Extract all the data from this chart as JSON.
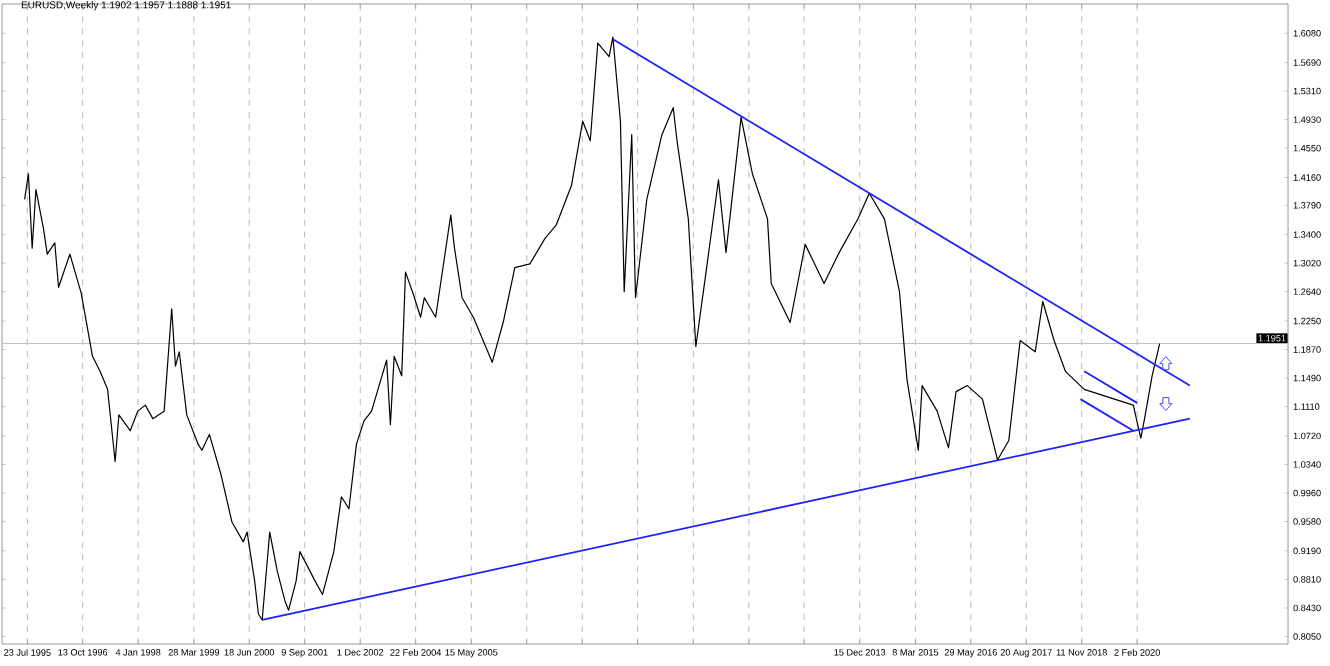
{
  "chart_data": {
    "type": "line",
    "title": "EURUSD,Weekly  1.1902 1.1957 1.1888 1.1951",
    "xlim": [
      "1995-01",
      "2023-06"
    ],
    "ylim": [
      0.795,
      1.647
    ],
    "xticks": [
      {
        "value": "1995-07-23",
        "label": "23 Jul 1995"
      },
      {
        "value": "1996-10-13",
        "label": "13 Oct 1996"
      },
      {
        "value": "1998-01-04",
        "label": "4 Jan 1998"
      },
      {
        "value": "1999-03-28",
        "label": "28 Mar 1999"
      },
      {
        "value": "2000-06-18",
        "label": "18 Jun 2000"
      },
      {
        "value": "2001-09-09",
        "label": "9 Sep 2001"
      },
      {
        "value": "2002-12-01",
        "label": "1 Dec 2002"
      },
      {
        "value": "2004-02-22",
        "label": "22 Feb 2004"
      },
      {
        "value": "2005-05-15",
        "label": "15 May 2005"
      },
      {
        "value": "2006-08-06",
        "label": null
      },
      {
        "value": "2007-10-28",
        "label": null
      },
      {
        "value": "2009-01-18",
        "label": null
      },
      {
        "value": "2010-04-11",
        "label": null
      },
      {
        "value": "2011-07-03",
        "label": null
      },
      {
        "value": "2012-09-23",
        "label": null
      },
      {
        "value": "2013-12-15",
        "label": "15 Dec 2013"
      },
      {
        "value": "2015-03-08",
        "label": "8 Mar 2015"
      },
      {
        "value": "2016-05-29",
        "label": "29 May 2016"
      },
      {
        "value": "2017-08-20",
        "label": "20 Aug 2017"
      },
      {
        "value": "2018-11-11",
        "label": "11 Nov 2018"
      },
      {
        "value": "2020-02-02",
        "label": "2 Feb 2020"
      }
    ],
    "yticks": [
      {
        "value": 1.608,
        "label": "1.6080"
      },
      {
        "value": 1.569,
        "label": "1.5690"
      },
      {
        "value": 1.531,
        "label": "1.5310"
      },
      {
        "value": 1.493,
        "label": "1.4930"
      },
      {
        "value": 1.455,
        "label": "1.4550"
      },
      {
        "value": 1.416,
        "label": "1.4160"
      },
      {
        "value": 1.379,
        "label": "1.3790"
      },
      {
        "value": 1.34,
        "label": "1.3400"
      },
      {
        "value": 1.302,
        "label": "1.3020"
      },
      {
        "value": 1.264,
        "label": "1.2640"
      },
      {
        "value": 1.225,
        "label": "1.2250"
      },
      {
        "value": 1.187,
        "label": "1.1870"
      },
      {
        "value": 1.149,
        "label": "1.1490"
      },
      {
        "value": 1.111,
        "label": "1.1110"
      },
      {
        "value": 1.072,
        "label": "1.0720"
      },
      {
        "value": 1.034,
        "label": "1.0340"
      },
      {
        "value": 0.996,
        "label": "0.9960"
      },
      {
        "value": 0.958,
        "label": "0.9580"
      },
      {
        "value": 0.919,
        "label": "0.9190"
      },
      {
        "value": 0.881,
        "label": "0.8810"
      },
      {
        "value": 0.843,
        "label": "0.8430"
      },
      {
        "value": 0.805,
        "label": "0.8050"
      }
    ],
    "grid": "x",
    "ref_lines": [
      {
        "axis": "y",
        "value": 1.1951,
        "label": "1.1951",
        "color": "#c0c0c0"
      }
    ],
    "series": [
      {
        "color": "#000000",
        "x": [
          "1995-07",
          "1995-08",
          "1995-09",
          "1995-10",
          "1995-12",
          "1996-01",
          "1996-03",
          "1996-04",
          "1996-07",
          "1996-10",
          "1997-01",
          "1997-03",
          "1997-05",
          "1997-07",
          "1997-08",
          "1997-11",
          "1998-01",
          "1998-03",
          "1998-05",
          "1998-08",
          "1998-10",
          "1998-11",
          "1998-12",
          "1999-02",
          "1999-05",
          "1999-06",
          "1999-08",
          "1999-11",
          "2000-02",
          "2000-05",
          "2000-06",
          "2000-08",
          "2000-09",
          "2000-10",
          "2000-12",
          "2001-02",
          "2001-04",
          "2001-05",
          "2001-07",
          "2001-08",
          "2001-12",
          "2002-02",
          "2002-05",
          "2002-07",
          "2002-09",
          "2002-11",
          "2003-01",
          "2003-03",
          "2003-05",
          "2003-07",
          "2003-08",
          "2003-09",
          "2003-11",
          "2003-12",
          "2004-02",
          "2004-04",
          "2004-05",
          "2004-08",
          "2004-12",
          "2005-01",
          "2005-03",
          "2005-06",
          "2005-11",
          "2006-02",
          "2006-05",
          "2006-09",
          "2007-01",
          "2007-04",
          "2007-08",
          "2007-11",
          "2008-01",
          "2008-03",
          "2008-06",
          "2008-07",
          "2008-09",
          "2008-10",
          "2008-12",
          "2009-01",
          "2009-04",
          "2009-08",
          "2009-11",
          "2009-12",
          "2010-03",
          "2010-05",
          "2010-08",
          "2010-11",
          "2011-01",
          "2011-05",
          "2011-08",
          "2011-12",
          "2012-01",
          "2012-06",
          "2012-10",
          "2013-03",
          "2013-07",
          "2013-12",
          "2014-03",
          "2014-07",
          "2014-11",
          "2015-01",
          "2015-04",
          "2015-05",
          "2015-09",
          "2015-12",
          "2016-02",
          "2016-05",
          "2016-09",
          "2017-01",
          "2017-04",
          "2017-07",
          "2017-11",
          "2018-01",
          "2018-04",
          "2018-07",
          "2018-12",
          "2019-08",
          "2020-01",
          "2020-03",
          "2020-04",
          "2020-06",
          "2020-08"
        ],
        "values": [
          1.387,
          1.421,
          1.322,
          1.4,
          1.348,
          1.314,
          1.329,
          1.27,
          1.314,
          1.262,
          1.178,
          1.158,
          1.134,
          1.038,
          1.1,
          1.079,
          1.105,
          1.113,
          1.095,
          1.105,
          1.241,
          1.165,
          1.184,
          1.1,
          1.061,
          1.053,
          1.074,
          1.022,
          0.957,
          0.931,
          0.944,
          0.879,
          0.835,
          0.827,
          0.944,
          0.892,
          0.853,
          0.84,
          0.879,
          0.918,
          0.879,
          0.861,
          0.918,
          0.991,
          0.975,
          1.061,
          1.092,
          1.105,
          1.139,
          1.173,
          1.087,
          1.178,
          1.152,
          1.29,
          1.262,
          1.23,
          1.256,
          1.23,
          1.366,
          1.322,
          1.256,
          1.23,
          1.17,
          1.225,
          1.296,
          1.301,
          1.335,
          1.353,
          1.405,
          1.491,
          1.465,
          1.595,
          1.577,
          1.603,
          1.491,
          1.264,
          1.473,
          1.256,
          1.387,
          1.473,
          1.509,
          1.465,
          1.361,
          1.191,
          1.301,
          1.413,
          1.316,
          1.496,
          1.421,
          1.361,
          1.275,
          1.223,
          1.327,
          1.275,
          1.316,
          1.361,
          1.395,
          1.361,
          1.264,
          1.147,
          1.053,
          1.139,
          1.105,
          1.056,
          1.131,
          1.139,
          1.121,
          1.04,
          1.066,
          1.199,
          1.184,
          1.251,
          1.199,
          1.158,
          1.134,
          1.121,
          1.113,
          1.069,
          1.095,
          1.152,
          1.195
        ]
      },
      {
        "type": "line",
        "color": "#1f1fff",
        "x": [
          "2008-07",
          "2021-04"
        ],
        "values": [
          1.6,
          1.139
        ]
      },
      {
        "type": "line",
        "color": "#1f1fff",
        "x": [
          "2000-10",
          "2021-04"
        ],
        "values": [
          0.827,
          1.095
        ]
      },
      {
        "type": "line",
        "color": "#1f1fff",
        "x": [
          "2018-12",
          "2020-02"
        ],
        "values": [
          1.158,
          1.116
        ]
      },
      {
        "type": "line",
        "color": "#1f1fff",
        "x": [
          "2018-11",
          "2020-01"
        ],
        "values": [
          1.121,
          1.079
        ]
      }
    ]
  }
}
